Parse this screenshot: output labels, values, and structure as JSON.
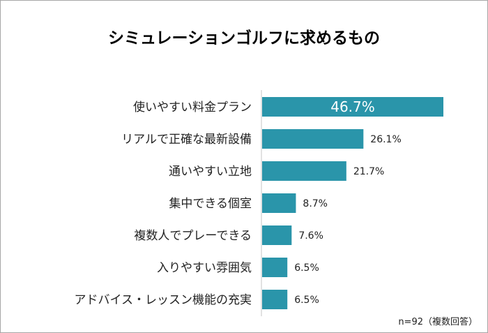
{
  "chart_data": {
    "type": "bar",
    "orientation": "horizontal",
    "title": "シミュレーションゴルフに求めるもの",
    "categories": [
      "使いやすい料金プラン",
      "リアルで正確な最新設備",
      "通いやすい立地",
      "集中できる個室",
      "複数人でプレーできる",
      "入りやすい雰囲気",
      "アドバイス・レッスン機能の充実"
    ],
    "values": [
      46.7,
      26.1,
      21.7,
      8.7,
      7.6,
      6.5,
      6.5
    ],
    "value_labels": [
      "46.7%",
      "26.1%",
      "21.7%",
      "8.7%",
      "7.6%",
      "6.5%",
      "6.5%"
    ],
    "xlim": [
      0,
      50
    ],
    "grid": false,
    "bar_color": "#2a95aa",
    "note": "n=92（複数回答）"
  }
}
